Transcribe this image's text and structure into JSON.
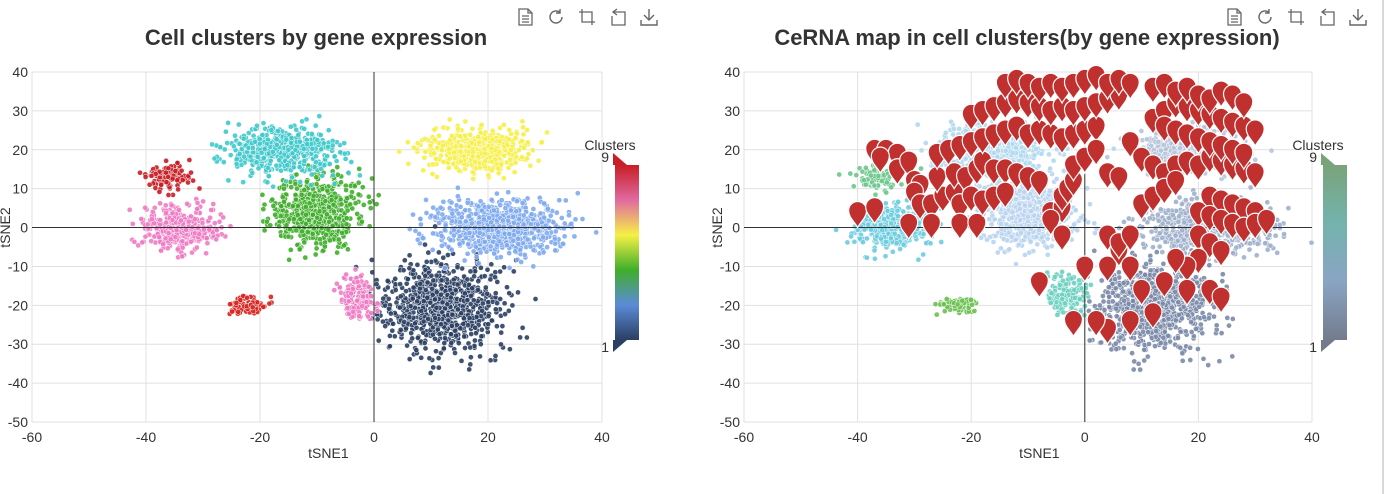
{
  "toolbox": {
    "icons": [
      "data-view-icon",
      "restore-icon",
      "zoom-icon",
      "zoom-reset-icon",
      "save-image-icon"
    ]
  },
  "chart_data": [
    {
      "type": "scatter",
      "title": "Cell clusters by gene expression",
      "xlabel": "tSNE1",
      "ylabel": "tSNE2",
      "xlim": [
        -60,
        40
      ],
      "ylim": [
        -50,
        40
      ],
      "xticks": [
        "-60",
        "-40",
        "-20",
        "0",
        "20",
        "40"
      ],
      "yticks": [
        "40",
        "30",
        "20",
        "10",
        "0",
        "-10",
        "-20",
        "-30",
        "-40",
        "-50"
      ],
      "grid": true,
      "visual_map": {
        "title": "Clusters",
        "max_label": "9",
        "min_label": "1",
        "colors": [
          "#2b3f63",
          "#5b8bd8",
          "#3fae2a",
          "#f6f046",
          "#e06aa0",
          "#c81e25"
        ]
      },
      "clusters": [
        {
          "cluster": 1,
          "color": "#2b3f63",
          "center": [
            12,
            -20
          ],
          "spread": [
            9,
            10
          ],
          "count": 900
        },
        {
          "cluster": 2,
          "color": "#7eaaf0",
          "center": [
            22,
            0
          ],
          "spread": [
            10,
            6
          ],
          "count": 800
        },
        {
          "cluster": 3,
          "color": "#f6f046",
          "center": [
            18,
            20
          ],
          "spread": [
            8,
            5
          ],
          "count": 500
        },
        {
          "cluster": 4,
          "color": "#3fae2a",
          "center": [
            -10,
            4
          ],
          "spread": [
            7,
            8
          ],
          "count": 650
        },
        {
          "cluster": 5,
          "color": "#3fc9cc",
          "center": [
            -16,
            20
          ],
          "spread": [
            9,
            6
          ],
          "count": 520
        },
        {
          "cluster": 6,
          "color": "#f07bc4",
          "center": [
            -34,
            0
          ],
          "spread": [
            6,
            5
          ],
          "count": 360
        },
        {
          "cluster": 7,
          "color": "#c81e25",
          "center": [
            -36,
            13
          ],
          "spread": [
            4,
            3
          ],
          "count": 110
        },
        {
          "cluster": 8,
          "color": "#f07bc4",
          "center": [
            -3,
            -18
          ],
          "spread": [
            3,
            5
          ],
          "count": 160
        },
        {
          "cluster": 9,
          "color": "#d7231f",
          "center": [
            -22,
            -20
          ],
          "spread": [
            3,
            2
          ],
          "count": 80
        }
      ]
    },
    {
      "type": "scatter",
      "title": "CeRNA map in cell clusters(by gene expression)",
      "xlabel": "tSNE1",
      "ylabel": "tSNE2",
      "xlim": [
        -60,
        40
      ],
      "ylim": [
        -50,
        40
      ],
      "xticks": [
        "-60",
        "-40",
        "-20",
        "0",
        "20",
        "40"
      ],
      "yticks": [
        "40",
        "30",
        "20",
        "10",
        "0",
        "-10",
        "-20",
        "-30",
        "-40",
        "-50"
      ],
      "grid": true,
      "visual_map": {
        "title": "Clusters",
        "max_label": "9",
        "min_label": "1",
        "colors": [
          "#737c8c",
          "#8aa4c4",
          "#73b3ad",
          "#7aa37a"
        ]
      },
      "clusters": [
        {
          "cluster": 1,
          "color": "#7a8aa8",
          "center": [
            12,
            -20
          ],
          "spread": [
            9,
            10
          ],
          "count": 900
        },
        {
          "cluster": 2,
          "color": "#9eb0cc",
          "center": [
            22,
            0
          ],
          "spread": [
            10,
            6
          ],
          "count": 800
        },
        {
          "cluster": 3,
          "color": "#b6c4dc",
          "center": [
            18,
            20
          ],
          "spread": [
            8,
            5
          ],
          "count": 500
        },
        {
          "cluster": 4,
          "color": "#b8d4f0",
          "center": [
            -10,
            4
          ],
          "spread": [
            7,
            8
          ],
          "count": 650
        },
        {
          "cluster": 5,
          "color": "#b0d8f0",
          "center": [
            -16,
            20
          ],
          "spread": [
            9,
            6
          ],
          "count": 520
        },
        {
          "cluster": 6,
          "color": "#6ccce0",
          "center": [
            -34,
            0
          ],
          "spread": [
            6,
            5
          ],
          "count": 360
        },
        {
          "cluster": 7,
          "color": "#6cc88c",
          "center": [
            -36,
            13
          ],
          "spread": [
            4,
            3
          ],
          "count": 110
        },
        {
          "cluster": 8,
          "color": "#6cd0c0",
          "center": [
            -3,
            -18
          ],
          "spread": [
            3,
            5
          ],
          "count": 160
        },
        {
          "cluster": 9,
          "color": "#6cc050",
          "center": [
            -22,
            -20
          ],
          "spread": [
            3,
            2
          ],
          "count": 80
        }
      ],
      "markers": {
        "color": "#c0302e",
        "points": [
          [
            -40,
            0
          ],
          [
            -37,
            1
          ],
          [
            -37,
            16
          ],
          [
            -35,
            16
          ],
          [
            -33,
            15
          ],
          [
            -36,
            14
          ],
          [
            -33,
            11
          ],
          [
            -31,
            13
          ],
          [
            -30,
            8
          ],
          [
            -29,
            7
          ],
          [
            -30,
            5
          ],
          [
            -29,
            2
          ],
          [
            -27,
            2
          ],
          [
            -31,
            -3
          ],
          [
            -27,
            -3
          ],
          [
            -25,
            4
          ],
          [
            -23,
            5
          ],
          [
            -22,
            2
          ],
          [
            -22,
            -3
          ],
          [
            -19,
            -3
          ],
          [
            -26,
            9
          ],
          [
            -23,
            10
          ],
          [
            -21,
            9
          ],
          [
            -19,
            11
          ],
          [
            -18,
            13
          ],
          [
            -16,
            11
          ],
          [
            -14,
            11
          ],
          [
            -12,
            10
          ],
          [
            -10,
            9
          ],
          [
            -8,
            8
          ],
          [
            -26,
            15
          ],
          [
            -24,
            16
          ],
          [
            -22,
            17
          ],
          [
            -20,
            18
          ],
          [
            -18,
            19
          ],
          [
            -16,
            20
          ],
          [
            -14,
            21
          ],
          [
            -12,
            22
          ],
          [
            -10,
            20
          ],
          [
            -8,
            21
          ],
          [
            -6,
            20
          ],
          [
            -4,
            19
          ],
          [
            -2,
            20
          ],
          [
            0,
            21
          ],
          [
            2,
            22
          ],
          [
            -20,
            25
          ],
          [
            -18,
            26
          ],
          [
            -16,
            27
          ],
          [
            -14,
            28
          ],
          [
            -12,
            29
          ],
          [
            -10,
            28
          ],
          [
            -8,
            27
          ],
          [
            -6,
            26
          ],
          [
            -4,
            27
          ],
          [
            -2,
            26
          ],
          [
            0,
            27
          ],
          [
            2,
            28
          ],
          [
            4,
            29
          ],
          [
            6,
            30
          ],
          [
            -14,
            33
          ],
          [
            -12,
            34
          ],
          [
            -10,
            33
          ],
          [
            -8,
            32
          ],
          [
            -6,
            33
          ],
          [
            -4,
            32
          ],
          [
            -2,
            33
          ],
          [
            0,
            34
          ],
          [
            2,
            35
          ],
          [
            4,
            33
          ],
          [
            6,
            34
          ],
          [
            8,
            33
          ],
          [
            -20,
            4
          ],
          [
            -18,
            3
          ],
          [
            -16,
            4
          ],
          [
            -14,
            5
          ],
          [
            -6,
            0
          ],
          [
            -4,
            1
          ],
          [
            -4,
            4
          ],
          [
            -3,
            6
          ],
          [
            -2,
            8
          ],
          [
            -2,
            12
          ],
          [
            0,
            14
          ],
          [
            2,
            16
          ],
          [
            4,
            10
          ],
          [
            6,
            9
          ],
          [
            8,
            18
          ],
          [
            10,
            14
          ],
          [
            12,
            12
          ],
          [
            14,
            10
          ],
          [
            16,
            12
          ],
          [
            18,
            13
          ],
          [
            20,
            12
          ],
          [
            22,
            14
          ],
          [
            24,
            13
          ],
          [
            26,
            12
          ],
          [
            28,
            11
          ],
          [
            30,
            10
          ],
          [
            12,
            24
          ],
          [
            14,
            26
          ],
          [
            16,
            28
          ],
          [
            18,
            27
          ],
          [
            20,
            26
          ],
          [
            22,
            25
          ],
          [
            24,
            24
          ],
          [
            26,
            23
          ],
          [
            28,
            22
          ],
          [
            30,
            21
          ],
          [
            14,
            22
          ],
          [
            16,
            21
          ],
          [
            18,
            20
          ],
          [
            20,
            19
          ],
          [
            22,
            18
          ],
          [
            24,
            17
          ],
          [
            26,
            16
          ],
          [
            28,
            15
          ],
          [
            12,
            32
          ],
          [
            14,
            33
          ],
          [
            16,
            31
          ],
          [
            18,
            32
          ],
          [
            20,
            30
          ],
          [
            22,
            29
          ],
          [
            24,
            31
          ],
          [
            26,
            30
          ],
          [
            28,
            28
          ],
          [
            22,
            4
          ],
          [
            24,
            3
          ],
          [
            26,
            2
          ],
          [
            28,
            1
          ],
          [
            30,
            0
          ],
          [
            20,
            0
          ],
          [
            22,
            -1
          ],
          [
            24,
            -2
          ],
          [
            26,
            -3
          ],
          [
            28,
            -4
          ],
          [
            30,
            -3
          ],
          [
            32,
            -2
          ],
          [
            20,
            -6
          ],
          [
            22,
            -8
          ],
          [
            24,
            -10
          ],
          [
            20,
            -12
          ],
          [
            18,
            -14
          ],
          [
            16,
            -12
          ],
          [
            14,
            -18
          ],
          [
            18,
            -20
          ],
          [
            22,
            -20
          ],
          [
            24,
            -22
          ],
          [
            12,
            -26
          ],
          [
            8,
            -28
          ],
          [
            4,
            -30
          ],
          [
            2,
            -28
          ],
          [
            -2,
            -28
          ],
          [
            0,
            -14
          ],
          [
            4,
            -14
          ],
          [
            6,
            -10
          ],
          [
            8,
            -14
          ],
          [
            10,
            -20
          ],
          [
            -8,
            -18
          ],
          [
            -6,
            -2
          ],
          [
            -4,
            -6
          ],
          [
            4,
            -6
          ],
          [
            6,
            -8
          ],
          [
            8,
            -6
          ],
          [
            10,
            2
          ],
          [
            12,
            4
          ],
          [
            14,
            6
          ],
          [
            16,
            8
          ]
        ]
      }
    }
  ]
}
